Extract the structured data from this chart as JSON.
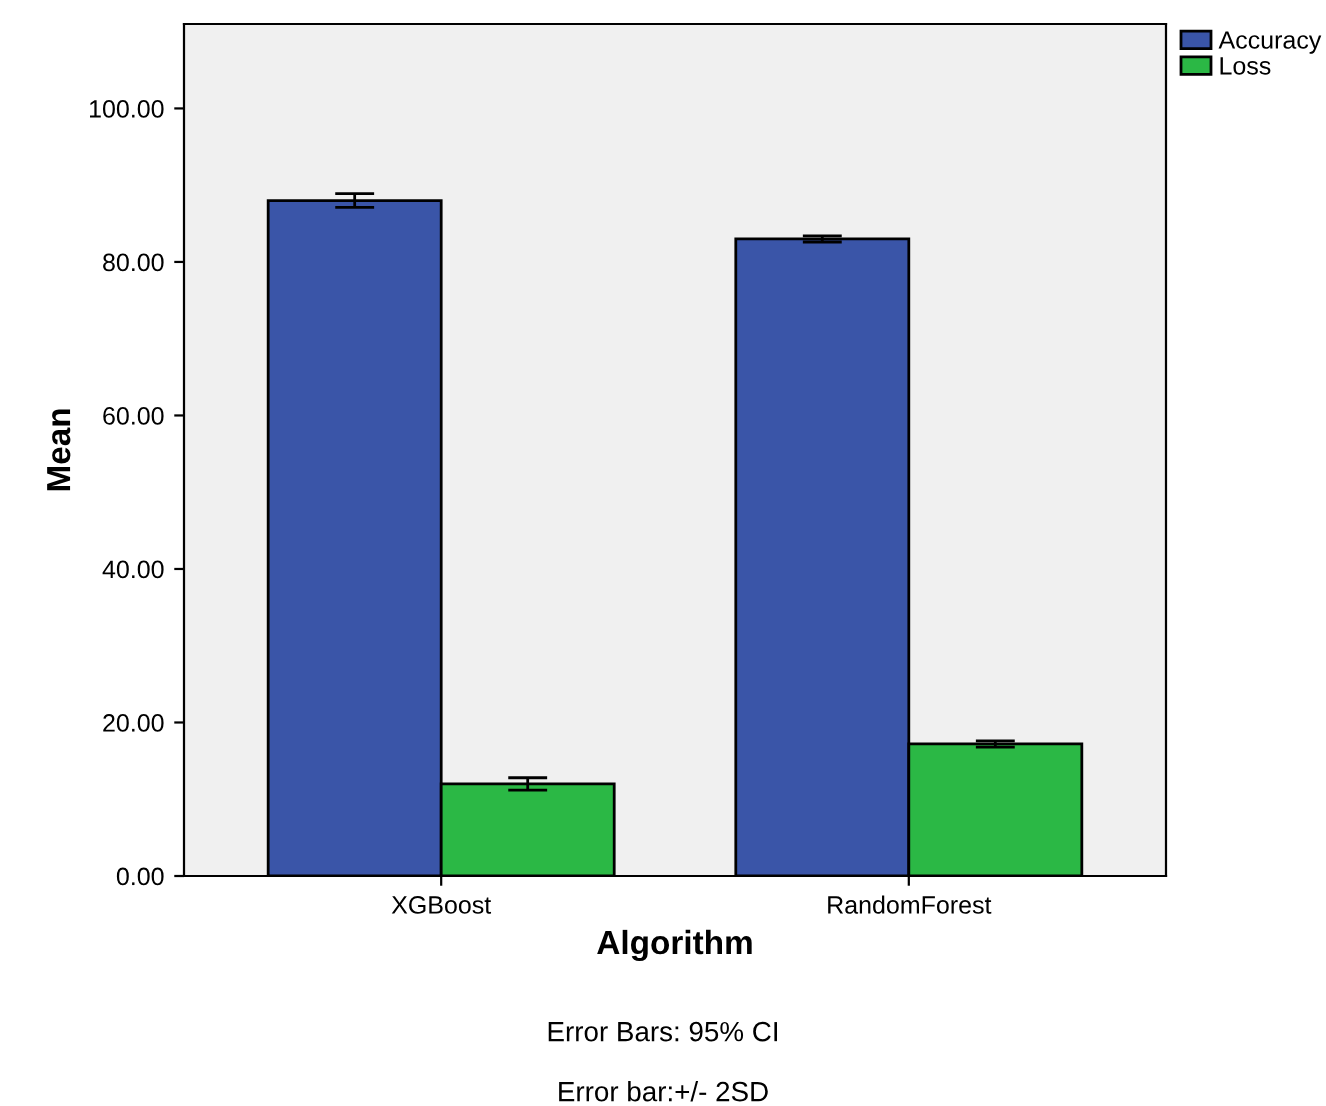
{
  "chart_data": {
    "type": "bar",
    "xlabel": "Algorithm",
    "ylabel": "Mean",
    "categories": [
      "XGBoost",
      "RandomForest"
    ],
    "series": [
      {
        "name": "Accuracy",
        "color": "#3a55a8",
        "values": [
          88.0,
          83.0
        ],
        "errors": [
          [
            87.1,
            88.9
          ],
          [
            82.6,
            83.4
          ]
        ]
      },
      {
        "name": "Loss",
        "color": "#2bb845",
        "values": [
          12.0,
          17.2
        ],
        "errors": [
          [
            11.2,
            12.8
          ],
          [
            16.8,
            17.6
          ]
        ]
      }
    ],
    "ylim": [
      0,
      111
    ],
    "yticks": [
      {
        "value": 0,
        "label": "0.00"
      },
      {
        "value": 20,
        "label": "20.00"
      },
      {
        "value": 40,
        "label": "40.00"
      },
      {
        "value": 60,
        "label": "60.00"
      },
      {
        "value": 80,
        "label": "80.00"
      },
      {
        "value": 100,
        "label": "100.00"
      }
    ],
    "grid": false,
    "legend": "top right",
    "annotations": [
      "Error Bars: 95% CI",
      "Error bar:+/- 2SD"
    ]
  }
}
